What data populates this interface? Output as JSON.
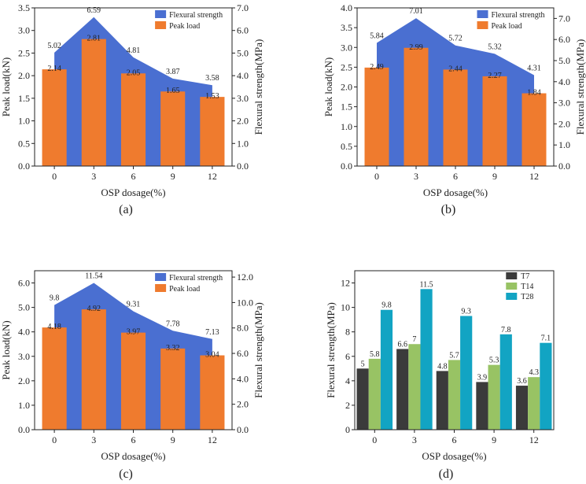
{
  "chart_data": [
    {
      "type": "bar+area",
      "panel_label": "(a)",
      "xlabel": "OSP dosage(%)",
      "ylabel_left": "Peak load(kN)",
      "ylabel_right": "Flexural strength(MPa)",
      "categories": [
        "0",
        "3",
        "6",
        "9",
        "12"
      ],
      "ylim_left": [
        0,
        3.5
      ],
      "ylim_right": [
        0,
        7.0
      ],
      "left_ticks": [
        "0.0",
        "0.5",
        "1.0",
        "1.5",
        "2.0",
        "2.5",
        "3.0",
        "3.5"
      ],
      "right_ticks": [
        "0.0",
        "1.0",
        "2.0",
        "3.0",
        "4.0",
        "5.0",
        "6.0",
        "7.0"
      ],
      "legend": [
        "Flexural strength",
        "Peak load"
      ],
      "series": [
        {
          "name": "Flexural strength",
          "kind": "area",
          "axis": "right",
          "values": [
            5.02,
            6.59,
            4.81,
            3.87,
            3.58
          ],
          "labels": [
            "5.02",
            "6.59",
            "4.81",
            "3.87",
            "3.58"
          ]
        },
        {
          "name": "Peak load",
          "kind": "bar",
          "axis": "left",
          "values": [
            2.14,
            2.81,
            2.05,
            1.65,
            1.53
          ],
          "labels": [
            "2.14",
            "2.81",
            "2.05",
            "1.65",
            "1.53"
          ]
        }
      ]
    },
    {
      "type": "bar+area",
      "panel_label": "(b)",
      "xlabel": "OSP dosage(%)",
      "ylabel_left": "Peak load(kN)",
      "ylabel_right": "Flexural strength(MPa)",
      "categories": [
        "0",
        "3",
        "6",
        "9",
        "12"
      ],
      "ylim_left": [
        0,
        4.0
      ],
      "ylim_right": [
        0,
        7.5
      ],
      "left_ticks": [
        "0.0",
        "0.5",
        "1.0",
        "1.5",
        "2.0",
        "2.5",
        "3.0",
        "3.5",
        "4.0"
      ],
      "right_ticks": [
        "0.0",
        "1.0",
        "2.0",
        "3.0",
        "4.0",
        "5.0",
        "6.0",
        "7.0"
      ],
      "legend": [
        "Flexural strength",
        "Peak load"
      ],
      "series": [
        {
          "name": "Flexural strength",
          "kind": "area",
          "axis": "right",
          "values": [
            5.84,
            7.01,
            5.72,
            5.32,
            4.31
          ],
          "labels": [
            "5.84",
            "7.01",
            "5.72",
            "5.32",
            "4.31"
          ]
        },
        {
          "name": "Peak load",
          "kind": "bar",
          "axis": "left",
          "values": [
            2.49,
            2.99,
            2.44,
            2.27,
            1.84
          ],
          "labels": [
            "2.49",
            "2.99",
            "2.44",
            "2.27",
            "1.84"
          ]
        }
      ]
    },
    {
      "type": "bar+area",
      "panel_label": "(c)",
      "xlabel": "OSP dosage(%)",
      "ylabel_left": "Peak load(kN)",
      "ylabel_right": "Flexural strength(MPa)",
      "categories": [
        "0",
        "3",
        "6",
        "9",
        "12"
      ],
      "ylim_left": [
        0,
        6.5
      ],
      "ylim_right": [
        0,
        12.5
      ],
      "left_ticks": [
        "0.0",
        "1.0",
        "2.0",
        "3.0",
        "4.0",
        "5.0",
        "6.0"
      ],
      "right_ticks": [
        "0.0",
        "2.0",
        "4.0",
        "6.0",
        "8.0",
        "10.0",
        "12.0"
      ],
      "legend": [
        "Flexural strength",
        "Peak load"
      ],
      "series": [
        {
          "name": "Flexural strength",
          "kind": "area",
          "axis": "right",
          "values": [
            9.8,
            11.54,
            9.31,
            7.78,
            7.13
          ],
          "labels": [
            "9.8",
            "11.54",
            "9.31",
            "7.78",
            "7.13"
          ]
        },
        {
          "name": "Peak load",
          "kind": "bar",
          "axis": "left",
          "values": [
            4.18,
            4.92,
            3.97,
            3.32,
            3.04
          ],
          "labels": [
            "4.18",
            "4.92",
            "3.97",
            "3.32",
            "3.04"
          ]
        }
      ]
    },
    {
      "type": "bar",
      "panel_label": "(d)",
      "xlabel": "OSP dosage(%)",
      "ylabel": "Flexural strength(MPa)",
      "categories": [
        "0",
        "3",
        "6",
        "9",
        "12"
      ],
      "ylim": [
        0,
        13
      ],
      "ticks": [
        "0",
        "2",
        "4",
        "6",
        "8",
        "10",
        "12"
      ],
      "legend": [
        "T7",
        "T14",
        "T28"
      ],
      "series": [
        {
          "name": "T7",
          "values": [
            5,
            6.6,
            4.8,
            3.9,
            3.6
          ],
          "labels": [
            "5",
            "6.6",
            "4.8",
            "3.9",
            "3.6"
          ]
        },
        {
          "name": "T14",
          "values": [
            5.8,
            7,
            5.7,
            5.3,
            4.3
          ],
          "labels": [
            "5.8",
            "7",
            "5.7",
            "5.3",
            "4.3"
          ]
        },
        {
          "name": "T28",
          "values": [
            9.8,
            11.5,
            9.3,
            7.8,
            7.1
          ],
          "labels": [
            "9.8",
            "11.5",
            "9.3",
            "7.8",
            "7.1"
          ]
        }
      ]
    }
  ],
  "colors": {
    "area": "#4a6fd1",
    "bar": "#ef7b2e",
    "t7": "#3b3b3b",
    "t14": "#98c364",
    "t28": "#12a4c3"
  }
}
